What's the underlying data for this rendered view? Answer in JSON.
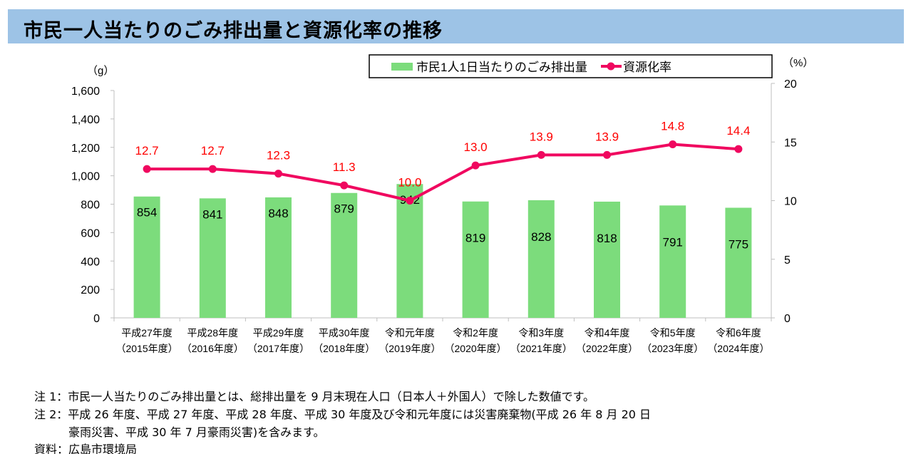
{
  "title": "市民一人当たりのごみ排出量と資源化率の推移",
  "chart_data": {
    "type": "bar+line",
    "categories": [
      [
        "平成27年度",
        "（2015年度）"
      ],
      [
        "平成28年度",
        "（2016年度）"
      ],
      [
        "平成29年度",
        "（2017年度）"
      ],
      [
        "平成30年度",
        "（2018年度）"
      ],
      [
        "令和元年度",
        "（2019年度）"
      ],
      [
        "令和2年度",
        "（2020年度）"
      ],
      [
        "令和3年度",
        "（2021年度）"
      ],
      [
        "令和4年度",
        "（2022年度）"
      ],
      [
        "令和5年度",
        "（2023年度）"
      ],
      [
        "令和6年度",
        "（2024年度）"
      ]
    ],
    "series": [
      {
        "name": "市民1人1日当たりのごみ排出量",
        "type": "bar",
        "axis": "left",
        "color": "#7cdc7c",
        "values": [
          854,
          841,
          848,
          879,
          942,
          819,
          828,
          818,
          791,
          775
        ],
        "labels": [
          "854",
          "841",
          "848",
          "879",
          "942",
          "819",
          "828",
          "818",
          "791",
          "775"
        ]
      },
      {
        "name": "資源化率",
        "type": "line",
        "axis": "right",
        "color": "#f0075f",
        "values": [
          12.7,
          12.7,
          12.3,
          11.3,
          10.0,
          13.0,
          13.9,
          13.9,
          14.8,
          14.4
        ],
        "labels": [
          "12.7",
          "12.7",
          "12.3",
          "11.3",
          "10.0",
          "13.0",
          "13.9",
          "13.9",
          "14.8",
          "14.4"
        ]
      }
    ],
    "left_axis": {
      "unit": "（g）",
      "ylim": [
        0,
        1600
      ],
      "ticks": [
        "0",
        "200",
        "400",
        "600",
        "800",
        "1,000",
        "1,200",
        "1,400",
        "1,600"
      ]
    },
    "right_axis": {
      "unit": "（%）",
      "ylim": [
        0,
        20
      ],
      "ticks": [
        "0",
        "5",
        "10",
        "15",
        "20"
      ]
    },
    "legend": "top",
    "grid": false
  },
  "notes": [
    "注 1：市民一人当たりのごみ排出量とは、総排出量を 9 月末現在人口（日本人＋外国人）で除した数値です。",
    "注 2：平成 26 年度、平成 27 年度、平成 28 年度、平成 30 年度及び令和元年度には災害廃棄物(平成 26 年 8 月 20 日",
    "　　　豪雨災害、平成 30 年 7 月豪雨災害)を含みます。",
    "資料：広島市環境局"
  ]
}
